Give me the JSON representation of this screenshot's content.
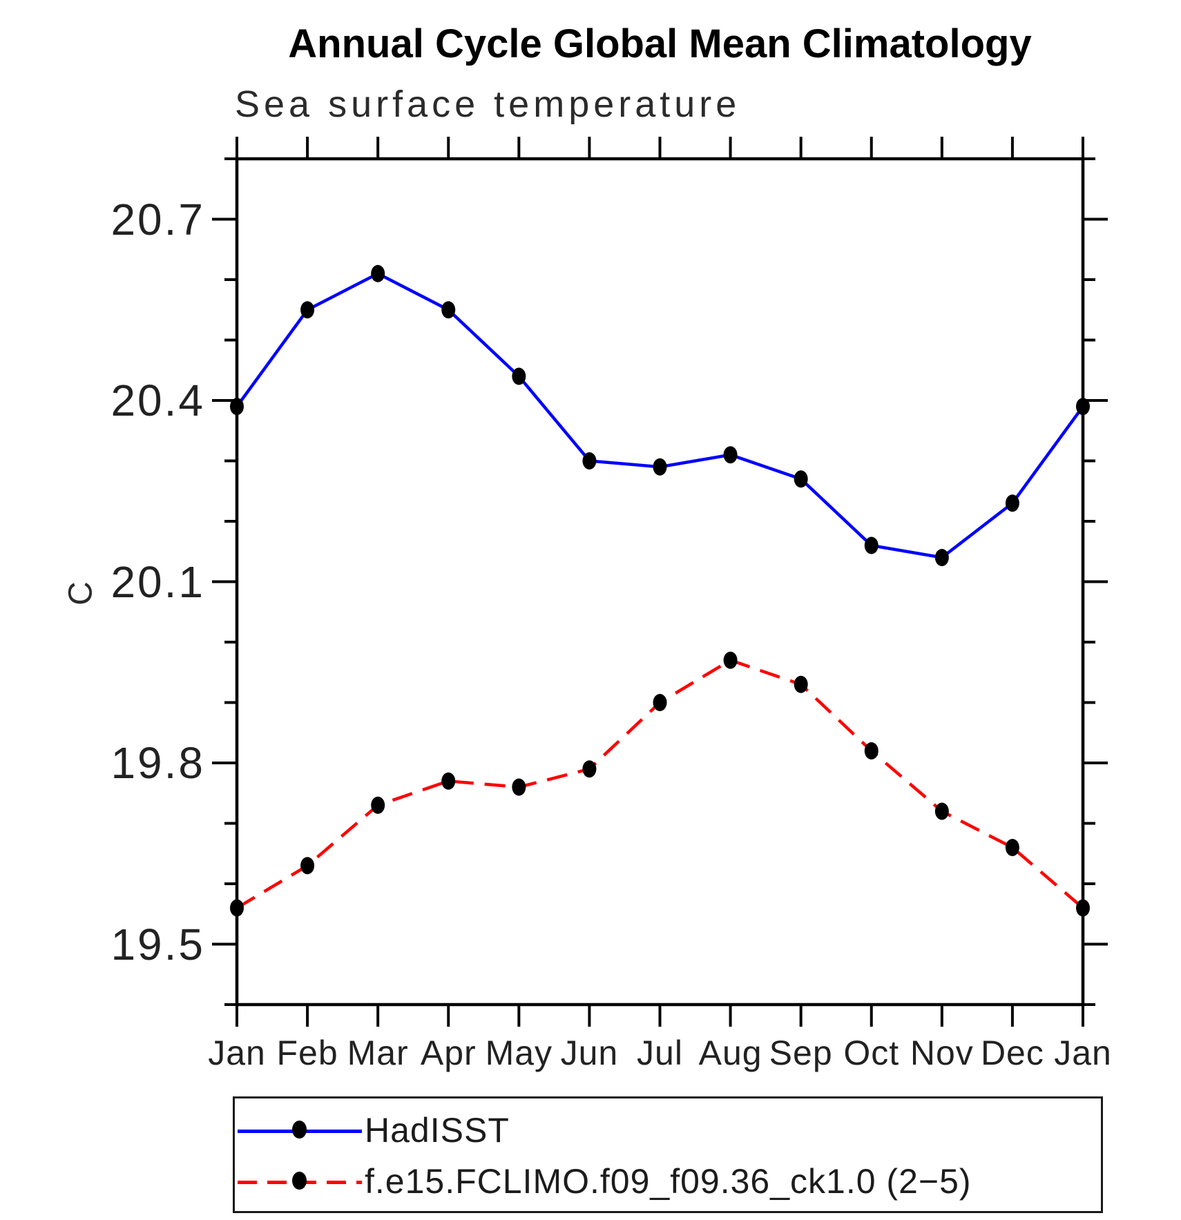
{
  "page": {
    "background": "#ffffff"
  },
  "title": "Annual Cycle Global Mean Climatology",
  "subtitle": "Sea surface temperature",
  "y_axis_label": "C",
  "legend": {
    "position": "bottom",
    "entries": [
      {
        "label": "HadISST",
        "line_color": "#0000ff",
        "line_style": "solid",
        "marker": "filled-circle",
        "marker_color": "#000000"
      },
      {
        "label": "f.e15.FCLIMO.f09_f09.36_ck1.0 (2−5)",
        "line_color": "#ff0000",
        "line_style": "dashed",
        "marker": "filled-circle",
        "marker_color": "#000000"
      }
    ]
  },
  "chart_data": {
    "type": "line",
    "title": "Annual Cycle Global Mean Climatology",
    "subtitle": "Sea surface temperature",
    "xlabel": "",
    "ylabel": "C",
    "categories": [
      "Jan",
      "Feb",
      "Mar",
      "Apr",
      "May",
      "Jun",
      "Jul",
      "Aug",
      "Sep",
      "Oct",
      "Nov",
      "Dec",
      "Jan"
    ],
    "series": [
      {
        "name": "HadISST",
        "color": "#0000ff",
        "line_style": "solid",
        "marker": "filled-circle",
        "marker_color": "#000000",
        "values": [
          20.39,
          20.55,
          20.61,
          20.55,
          20.44,
          20.3,
          20.29,
          20.31,
          20.27,
          20.16,
          20.14,
          20.23,
          20.39
        ]
      },
      {
        "name": "f.e15.FCLIMO.f09_f09.36_ck1.0 (2−5)",
        "color": "#ff0000",
        "line_style": "dashed",
        "marker": "filled-circle",
        "marker_color": "#000000",
        "values": [
          19.56,
          19.63,
          19.73,
          19.77,
          19.76,
          19.79,
          19.9,
          19.97,
          19.93,
          19.82,
          19.72,
          19.66,
          19.56
        ]
      }
    ],
    "ylim": [
      19.4,
      20.8
    ],
    "y_major_ticks": [
      19.5,
      19.8,
      20.1,
      20.4,
      20.7
    ],
    "y_minor_tick_interval": 0.1,
    "grid": false,
    "legend_position": "bottom",
    "axis_color": "#000000",
    "tick_direction": "out"
  }
}
